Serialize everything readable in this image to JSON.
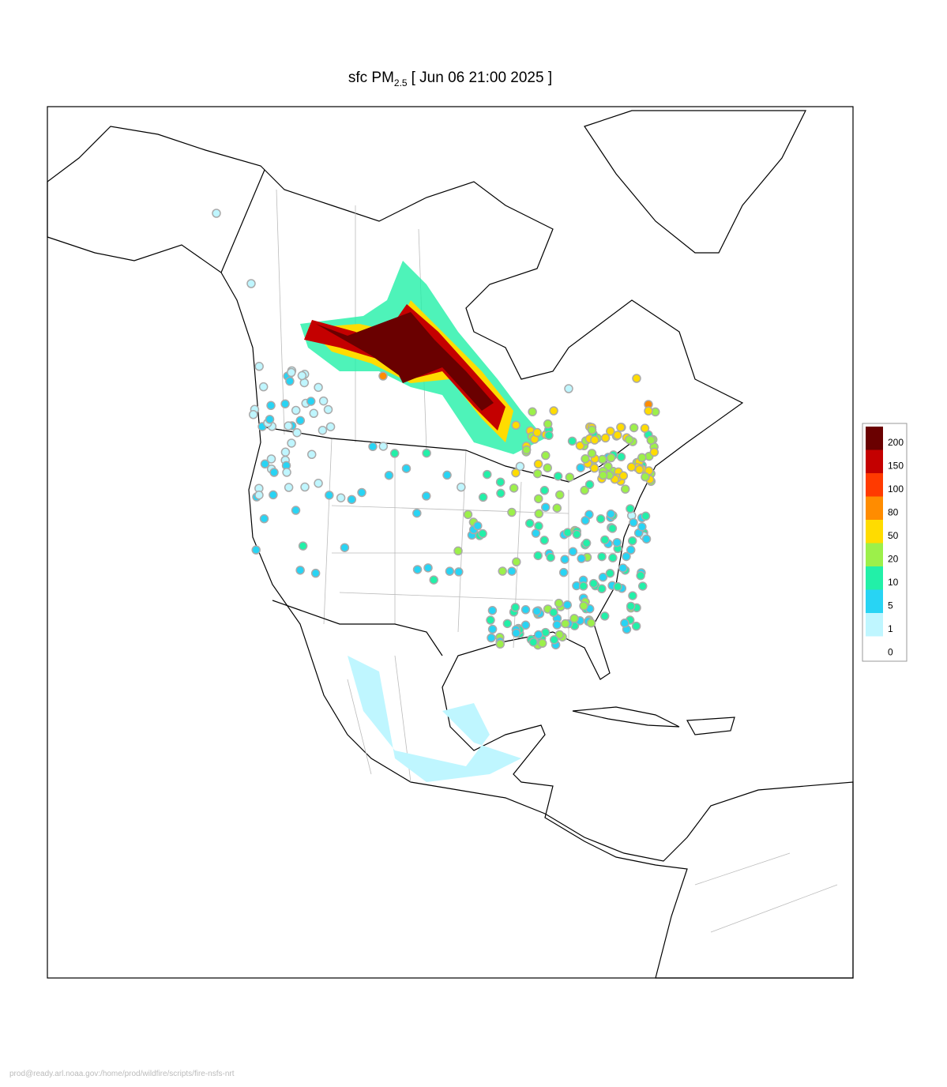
{
  "title": {
    "prefix": "sfc PM",
    "subscript": "2.5",
    "suffix": "[ Jun 06 21:00 2025 ]"
  },
  "legend": [
    {
      "label": 200,
      "color": "#6a0000"
    },
    {
      "label": 150,
      "color": "#c40000"
    },
    {
      "label": 100,
      "color": "#ff3a00"
    },
    {
      "label": 80,
      "color": "#ff8c00"
    },
    {
      "label": 50,
      "color": "#ffdc00"
    },
    {
      "label": 20,
      "color": "#9cf04a"
    },
    {
      "label": 10,
      "color": "#22f0a8"
    },
    {
      "label": 5,
      "color": "#28d4f4"
    },
    {
      "label": 1,
      "color": "#bff6ff"
    },
    {
      "label": 0,
      "color": "#ffffff"
    }
  ],
  "footer": "prod@ready.arl.noaa.gov:/home/prod/wildfire/scripts/fire-nsfs-nrt"
}
